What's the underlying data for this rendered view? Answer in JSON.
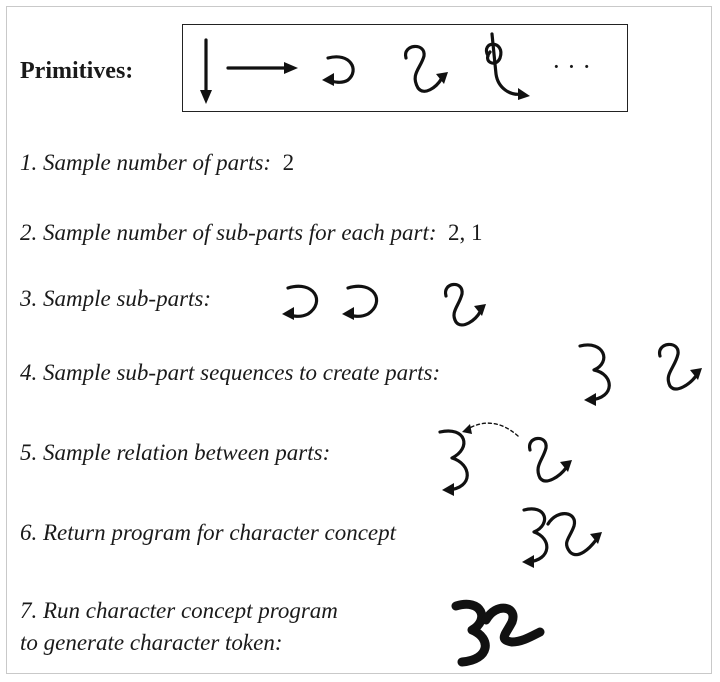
{
  "primitives": {
    "label": "Primitives:",
    "ellipsis": "· · ·"
  },
  "steps": [
    {
      "text": "1. Sample number of parts:",
      "value": "2"
    },
    {
      "text": "2. Sample number of sub-parts for each part:",
      "value": "2, 1"
    },
    {
      "text": "3. Sample sub-parts:"
    },
    {
      "text": "4. Sample sub-part sequences to create parts:"
    },
    {
      "text": "5. Sample relation between parts:"
    },
    {
      "text": "6. Return program for character concept"
    },
    {
      "text": "7. Run character concept program",
      "text2": "to generate character token:"
    }
  ]
}
